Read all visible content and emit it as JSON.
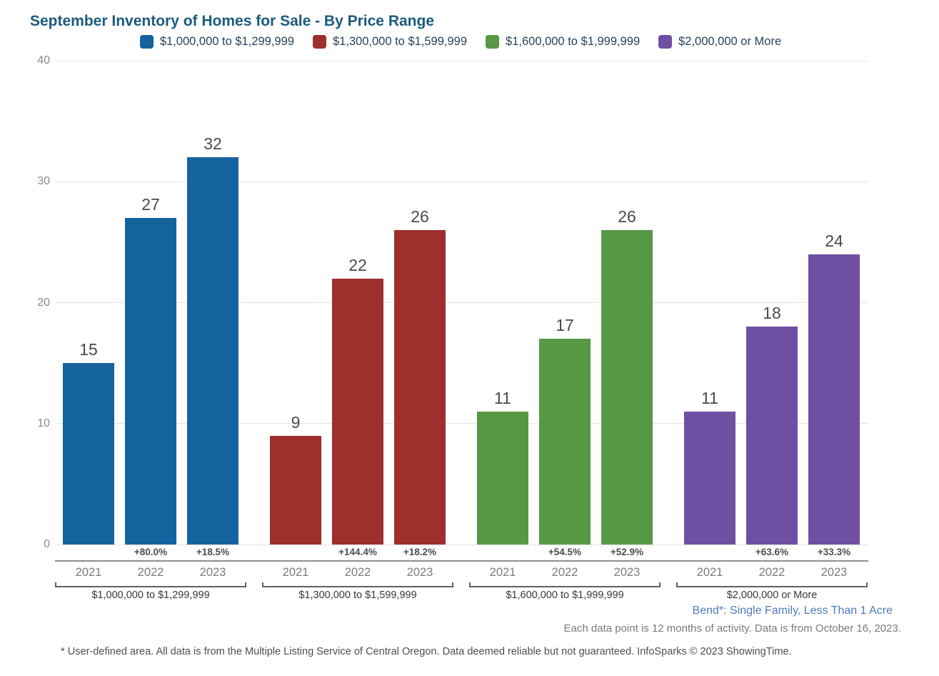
{
  "title": "September Inventory of Homes for Sale - By Price Range",
  "chart_data": {
    "type": "bar",
    "title": "September Inventory of Homes for Sale - By Price Range",
    "categories": [
      "2021",
      "2022",
      "2023"
    ],
    "series": [
      {
        "name": "$1,000,000 to $1,299,999",
        "color": "#15639E",
        "values": [
          15,
          27,
          32
        ],
        "pct_change": [
          "",
          "+80.0%",
          "+18.5%"
        ]
      },
      {
        "name": "$1,300,000 to $1,599,999",
        "color": "#9D2F2D",
        "values": [
          9,
          22,
          26
        ],
        "pct_change": [
          "",
          "+144.4%",
          "+18.2%"
        ]
      },
      {
        "name": "$1,600,000 to $1,999,999",
        "color": "#579845",
        "values": [
          11,
          17,
          26
        ],
        "pct_change": [
          "",
          "+54.5%",
          "+52.9%"
        ]
      },
      {
        "name": "$2,000,000 or More",
        "color": "#6F4FA1",
        "values": [
          11,
          18,
          24
        ],
        "pct_change": [
          "",
          "+63.6%",
          "+33.3%"
        ]
      }
    ],
    "ylim": [
      0,
      40
    ],
    "yticks": [
      0,
      10,
      20,
      30,
      40
    ],
    "grid": true,
    "legend_position": "top"
  },
  "footnotes": {
    "area": "Bend*: Single Family, Less Than 1 Acre",
    "data_note": "Each data point is 12 months of activity. Data is from October 16, 2023.",
    "disclaimer": "* User-defined area. All data is from the Multiple Listing Service of Central Oregon. Data deemed reliable but not guaranteed. InfoSparks © 2023 ShowingTime."
  }
}
